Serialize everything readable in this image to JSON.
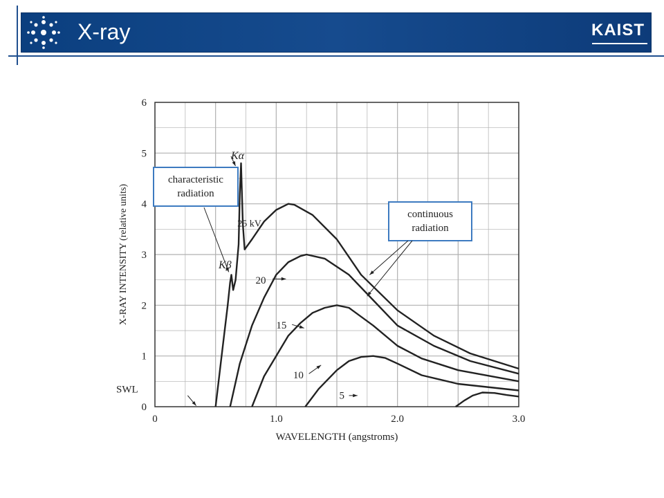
{
  "slide": {
    "title": "X-ray",
    "brand": "KAIST"
  },
  "chart_data": {
    "type": "line",
    "xlabel": "WAVELENGTH (angstroms)",
    "ylabel": "X-RAY INTENSITY (relative units)",
    "xlim": [
      0,
      3.0
    ],
    "ylim": [
      0,
      6
    ],
    "x_ticks": [
      "0",
      "1.0",
      "2.0",
      "3.0"
    ],
    "y_ticks": [
      "0",
      "1",
      "2",
      "3",
      "4",
      "5",
      "6"
    ],
    "grid": true,
    "series": [
      {
        "name": "25 kV",
        "points": [
          [
            0.5,
            0
          ],
          [
            0.55,
            1.0
          ],
          [
            0.6,
            2.0
          ],
          [
            0.62,
            2.45
          ],
          [
            0.63,
            2.6
          ],
          [
            0.645,
            2.3
          ],
          [
            0.665,
            2.5
          ],
          [
            0.69,
            3.2
          ],
          [
            0.7,
            4.2
          ],
          [
            0.71,
            4.8
          ],
          [
            0.725,
            3.6
          ],
          [
            0.74,
            3.1
          ],
          [
            0.8,
            3.3
          ],
          [
            0.9,
            3.65
          ],
          [
            1.0,
            3.88
          ],
          [
            1.1,
            4.0
          ],
          [
            1.15,
            3.98
          ],
          [
            1.3,
            3.78
          ],
          [
            1.5,
            3.3
          ],
          [
            1.7,
            2.6
          ],
          [
            2.0,
            1.9
          ],
          [
            2.3,
            1.4
          ],
          [
            2.6,
            1.05
          ],
          [
            3.0,
            0.75
          ]
        ]
      },
      {
        "name": "20",
        "points": [
          [
            0.62,
            0
          ],
          [
            0.7,
            0.85
          ],
          [
            0.8,
            1.6
          ],
          [
            0.9,
            2.15
          ],
          [
            1.0,
            2.6
          ],
          [
            1.1,
            2.85
          ],
          [
            1.2,
            2.97
          ],
          [
            1.25,
            3.0
          ],
          [
            1.4,
            2.92
          ],
          [
            1.6,
            2.6
          ],
          [
            1.8,
            2.1
          ],
          [
            2.0,
            1.6
          ],
          [
            2.3,
            1.2
          ],
          [
            2.6,
            0.9
          ],
          [
            3.0,
            0.65
          ]
        ]
      },
      {
        "name": "15",
        "points": [
          [
            0.8,
            0
          ],
          [
            0.9,
            0.6
          ],
          [
            1.0,
            1.0
          ],
          [
            1.1,
            1.4
          ],
          [
            1.2,
            1.65
          ],
          [
            1.3,
            1.85
          ],
          [
            1.4,
            1.95
          ],
          [
            1.5,
            2.0
          ],
          [
            1.6,
            1.95
          ],
          [
            1.8,
            1.6
          ],
          [
            2.0,
            1.2
          ],
          [
            2.2,
            0.95
          ],
          [
            2.5,
            0.72
          ],
          [
            3.0,
            0.5
          ]
        ]
      },
      {
        "name": "10",
        "points": [
          [
            1.24,
            0
          ],
          [
            1.35,
            0.35
          ],
          [
            1.5,
            0.72
          ],
          [
            1.6,
            0.9
          ],
          [
            1.7,
            0.98
          ],
          [
            1.8,
            1.0
          ],
          [
            1.9,
            0.96
          ],
          [
            2.0,
            0.85
          ],
          [
            2.2,
            0.62
          ],
          [
            2.5,
            0.45
          ],
          [
            3.0,
            0.32
          ]
        ]
      },
      {
        "name": "5",
        "points": [
          [
            2.48,
            0
          ],
          [
            2.55,
            0.12
          ],
          [
            2.62,
            0.22
          ],
          [
            2.7,
            0.28
          ],
          [
            2.8,
            0.27
          ],
          [
            2.9,
            0.23
          ],
          [
            3.0,
            0.2
          ]
        ]
      }
    ],
    "annotations": {
      "characteristic": "characteristic radiation",
      "k_alpha": "Kα",
      "k_beta": "Kβ",
      "continuous": "continuous radiation",
      "swl": "SWL",
      "label_25": "25 kV",
      "label_20": "20",
      "label_15": "15",
      "label_10": "10",
      "label_5": "5"
    }
  },
  "colors": {
    "banner": "#164b8e",
    "highlight_box": "#3c7ac0",
    "curve": "#222222",
    "grid": "#b0b0b0"
  }
}
